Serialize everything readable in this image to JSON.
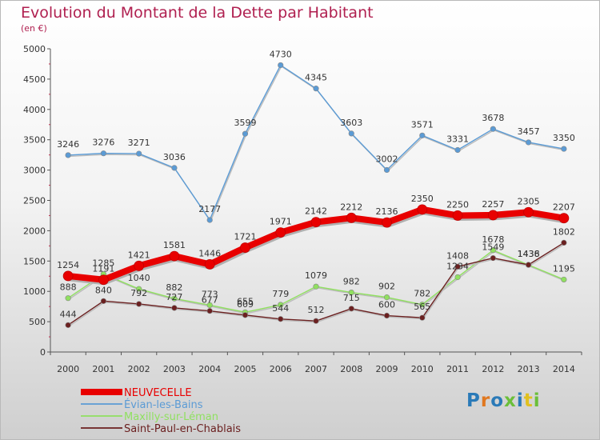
{
  "title": "Evolution du Montant de la Dette par Habitant",
  "subtitle": "(en €)",
  "logo": "Proxiti",
  "chart_data": {
    "type": "line",
    "x": [
      "2000",
      "2001",
      "2002",
      "2003",
      "2004",
      "2005",
      "2006",
      "2007",
      "2008",
      "2009",
      "2010",
      "2011",
      "2012",
      "2013",
      "2014"
    ],
    "ylim": [
      0,
      5000
    ],
    "yticks": [
      0,
      500,
      1000,
      1500,
      2000,
      2500,
      3000,
      3500,
      4000,
      4500,
      5000
    ],
    "grid": false,
    "legend_position": "bottom",
    "series": [
      {
        "name": "NEUVECELLE",
        "color": "#e80000",
        "values": [
          1254,
          1191,
          1421,
          1581,
          1446,
          1721,
          1971,
          2142,
          2212,
          2136,
          2350,
          2250,
          2257,
          2305,
          2207
        ]
      },
      {
        "name": "Évian-les-Bains",
        "color": "#5b9bd5",
        "values": [
          3246,
          3276,
          3271,
          3036,
          2177,
          3599,
          4730,
          4345,
          3603,
          3002,
          3571,
          3331,
          3678,
          3457,
          3350
        ]
      },
      {
        "name": "Maxilly-sur-Léman",
        "color": "#90e060",
        "values": [
          888,
          1285,
          1040,
          882,
          773,
          655,
          779,
          1079,
          982,
          902,
          782,
          1234,
          1678,
          1436,
          1195
        ]
      },
      {
        "name": "Saint-Paul-en-Chablais",
        "color": "#6b2020",
        "values": [
          444,
          840,
          792,
          727,
          677,
          609,
          544,
          512,
          715,
          600,
          565,
          1408,
          1549,
          1438,
          1802
        ]
      }
    ]
  }
}
